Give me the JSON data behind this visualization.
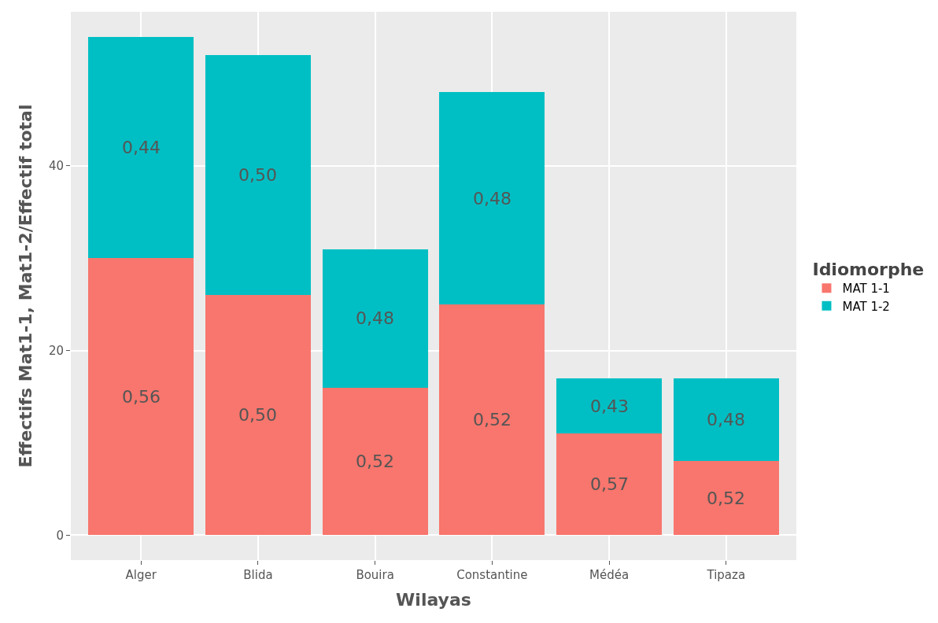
{
  "chart_data": {
    "type": "bar",
    "stacked": true,
    "xlabel": "Wilayas",
    "ylabel": "Effectifs Mat1-1, Mat1-2/Effectif total",
    "legend_title": "Idiomorphe",
    "legend": "right",
    "categories": [
      "Alger",
      "Blida",
      "Bouira",
      "Constantine",
      "Médéa",
      "Tipaza"
    ],
    "series": [
      {
        "name": "MAT 1-1",
        "color": "#f8766d",
        "values": [
          30,
          26,
          16,
          25,
          11,
          8
        ]
      },
      {
        "name": "MAT 1-2",
        "color": "#00bfc4",
        "values": [
          24,
          26,
          15,
          23,
          6,
          9
        ]
      }
    ],
    "annotations": [
      "0,56",
      "0,44",
      "0,50",
      "0,50",
      "0,52",
      "0,48",
      "0,52",
      "0,48",
      "0,57",
      "0,43",
      "0,52",
      "0,48"
    ],
    "ylim": [
      -2.7,
      56.7
    ],
    "yticks": [
      0,
      20,
      40
    ],
    "grid": true
  }
}
